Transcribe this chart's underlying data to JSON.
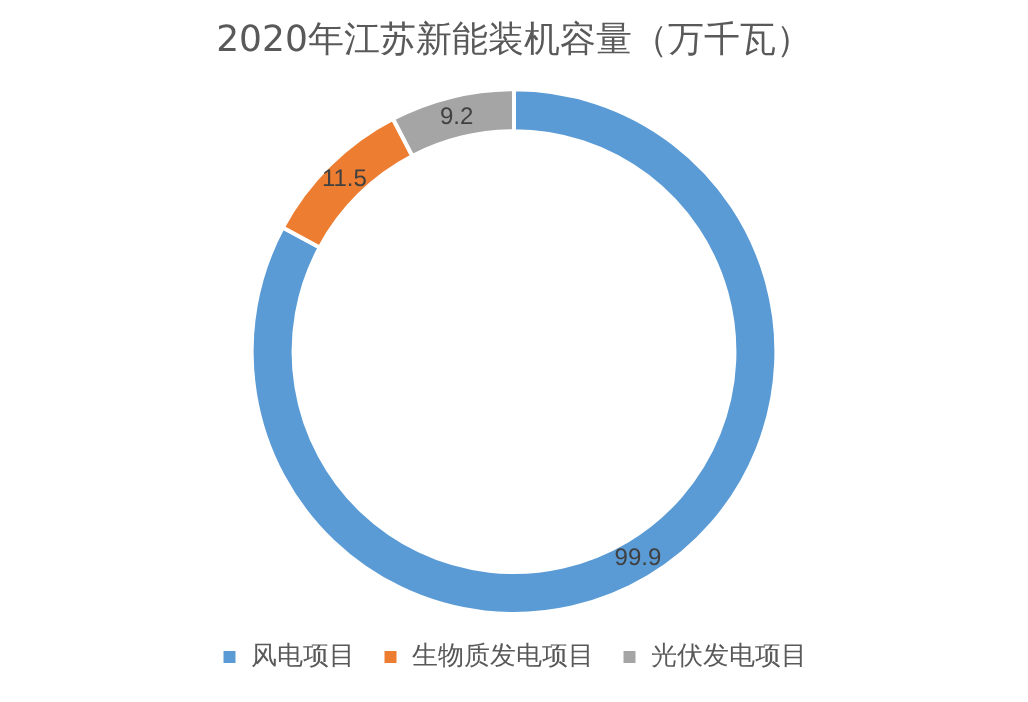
{
  "chart_data": {
    "type": "donut",
    "title": "2020年江苏新能装机容量（万千瓦）",
    "categories": [
      "风电项目",
      "生物质发电项目",
      "光伏发电项目"
    ],
    "values": [
      99.9,
      11.5,
      9.2
    ],
    "colors": [
      "#5b9bd5",
      "#ed7d31",
      "#a5a5a5"
    ],
    "data_labels": true,
    "legend": "bottom"
  }
}
